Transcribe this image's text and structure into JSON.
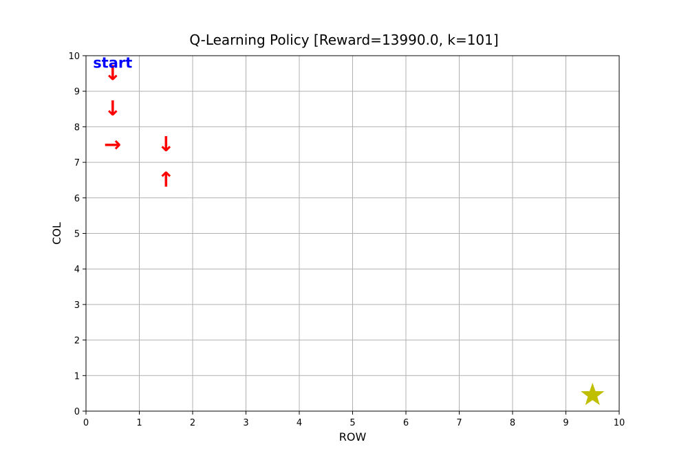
{
  "chart_data": {
    "type": "scatter",
    "title": "Q-Learning Policy [Reward=13990.0, k=101]",
    "xlabel": "ROW",
    "ylabel": "COL",
    "xlim": [
      0,
      10
    ],
    "ylim": [
      0,
      10
    ],
    "x_ticks": [
      "0",
      "1",
      "2",
      "3",
      "4",
      "5",
      "6",
      "7",
      "8",
      "9",
      "10"
    ],
    "y_ticks": [
      "0",
      "1",
      "2",
      "3",
      "4",
      "5",
      "6",
      "7",
      "8",
      "9",
      "10"
    ],
    "grid": true,
    "start_label": {
      "text": "start",
      "x": 0.5,
      "y": 9.8,
      "color": "#0000ff"
    },
    "policy_arrows": [
      {
        "x": 0.5,
        "y": 9.5,
        "direction": "down",
        "symbol": "↓"
      },
      {
        "x": 0.5,
        "y": 8.5,
        "direction": "down",
        "symbol": "↓"
      },
      {
        "x": 0.5,
        "y": 7.5,
        "direction": "right",
        "symbol": "→"
      },
      {
        "x": 1.5,
        "y": 7.5,
        "direction": "down",
        "symbol": "↓"
      },
      {
        "x": 1.5,
        "y": 6.5,
        "direction": "up",
        "symbol": "↑"
      }
    ],
    "arrow_color": "#ff0000",
    "goal": {
      "x": 9.5,
      "y": 0.45,
      "marker": "star",
      "color": "#bfbf00"
    }
  }
}
